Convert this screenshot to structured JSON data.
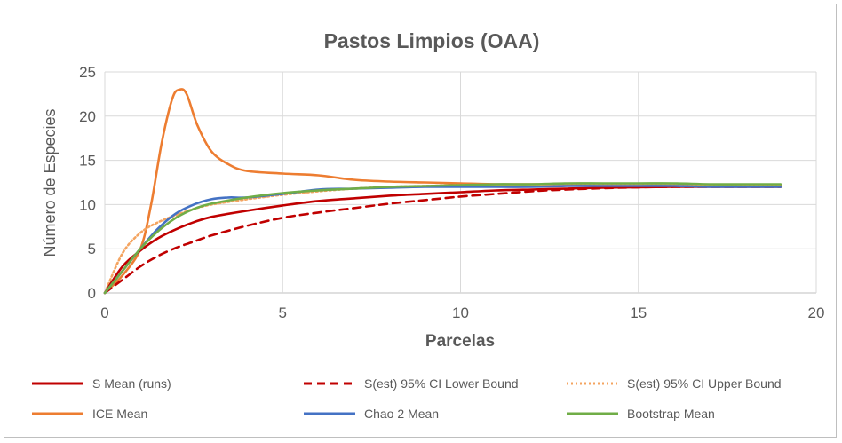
{
  "chart_data": {
    "type": "line",
    "title": "Pastos Limpios (OAA)",
    "xlabel": "Parcelas",
    "ylabel": "Número de Especies",
    "xlim": [
      0,
      20
    ],
    "ylim": [
      0,
      25
    ],
    "xticks": [
      "0",
      "5",
      "10",
      "15",
      "20"
    ],
    "yticks": [
      "0",
      "5",
      "10",
      "15",
      "20",
      "25"
    ],
    "grid": true,
    "legend": "bottom",
    "series": [
      {
        "name": "S Mean (runs)",
        "color": "#c00000",
        "dash": "solid",
        "points": [
          [
            0,
            0
          ],
          [
            0.5,
            3
          ],
          [
            1,
            4.8
          ],
          [
            1.5,
            6.2
          ],
          [
            2,
            7.2
          ],
          [
            2.5,
            8
          ],
          [
            3,
            8.6
          ],
          [
            4,
            9.3
          ],
          [
            5,
            9.9
          ],
          [
            6,
            10.4
          ],
          [
            7,
            10.7
          ],
          [
            8,
            11
          ],
          [
            9,
            11.2
          ],
          [
            10,
            11.4
          ],
          [
            11,
            11.6
          ],
          [
            12,
            11.7
          ],
          [
            13,
            11.8
          ],
          [
            14,
            11.9
          ],
          [
            15,
            11.95
          ],
          [
            16,
            12
          ],
          [
            17,
            12
          ],
          [
            18,
            12
          ],
          [
            19,
            12
          ]
        ]
      },
      {
        "name": "S(est) 95% CI Lower Bound",
        "color": "#c00000",
        "dash": "dashed",
        "points": [
          [
            0,
            0
          ],
          [
            0.5,
            1.5
          ],
          [
            1,
            3
          ],
          [
            1.5,
            4.2
          ],
          [
            2,
            5.1
          ],
          [
            2.5,
            5.8
          ],
          [
            3,
            6.5
          ],
          [
            4,
            7.6
          ],
          [
            5,
            8.5
          ],
          [
            6,
            9.1
          ],
          [
            7,
            9.6
          ],
          [
            8,
            10.1
          ],
          [
            9,
            10.5
          ],
          [
            10,
            10.9
          ],
          [
            11,
            11.2
          ],
          [
            12,
            11.5
          ],
          [
            13,
            11.7
          ],
          [
            14,
            11.85
          ],
          [
            15,
            11.95
          ],
          [
            16,
            12
          ],
          [
            17,
            12
          ],
          [
            18,
            12
          ],
          [
            19,
            12
          ]
        ]
      },
      {
        "name": "S(est) 95% CI Upper Bound",
        "color": "#f4a460",
        "dash": "dotted",
        "points": [
          [
            0,
            0
          ],
          [
            0.5,
            4.5
          ],
          [
            1,
            6.8
          ],
          [
            1.5,
            8
          ],
          [
            2,
            8.8
          ],
          [
            2.5,
            9.5
          ],
          [
            3,
            10
          ],
          [
            4,
            10.6
          ],
          [
            5,
            11.1
          ],
          [
            6,
            11.5
          ],
          [
            7,
            11.8
          ],
          [
            8,
            12
          ],
          [
            9,
            12.1
          ],
          [
            10,
            12.2
          ],
          [
            11,
            12.2
          ],
          [
            12,
            12.2
          ],
          [
            13,
            12.2
          ],
          [
            14,
            12.2
          ],
          [
            15,
            12.2
          ],
          [
            16,
            12.2
          ],
          [
            17,
            12.1
          ],
          [
            18,
            12.1
          ],
          [
            19,
            12.1
          ]
        ]
      },
      {
        "name": "ICE Mean",
        "color": "#ed7d31",
        "dash": "solid",
        "points": [
          [
            0,
            0
          ],
          [
            0.5,
            2
          ],
          [
            1,
            5
          ],
          [
            1.3,
            10
          ],
          [
            1.6,
            17
          ],
          [
            1.9,
            22
          ],
          [
            2.1,
            23
          ],
          [
            2.3,
            22.5
          ],
          [
            2.6,
            19
          ],
          [
            3,
            16
          ],
          [
            3.5,
            14.5
          ],
          [
            4,
            13.8
          ],
          [
            5,
            13.5
          ],
          [
            6,
            13.3
          ],
          [
            7,
            12.8
          ],
          [
            8,
            12.6
          ],
          [
            9,
            12.5
          ],
          [
            10,
            12.4
          ],
          [
            11,
            12.3
          ],
          [
            12,
            12.3
          ],
          [
            13,
            12.3
          ],
          [
            14,
            12.3
          ],
          [
            15,
            12.3
          ],
          [
            16,
            12.2
          ],
          [
            17,
            12.2
          ],
          [
            18,
            12.2
          ],
          [
            19,
            12.2
          ]
        ]
      },
      {
        "name": "Chao 2 Mean",
        "color": "#4472c4",
        "dash": "solid",
        "points": [
          [
            0,
            0
          ],
          [
            0.5,
            2.5
          ],
          [
            1,
            5
          ],
          [
            1.5,
            7.3
          ],
          [
            2,
            9
          ],
          [
            2.5,
            10
          ],
          [
            3,
            10.6
          ],
          [
            3.5,
            10.8
          ],
          [
            4,
            10.8
          ],
          [
            5,
            11.2
          ],
          [
            6,
            11.7
          ],
          [
            7,
            11.8
          ],
          [
            8,
            11.9
          ],
          [
            9,
            12
          ],
          [
            10,
            12
          ],
          [
            11,
            12
          ],
          [
            12,
            12
          ],
          [
            13,
            12.1
          ],
          [
            14,
            12.1
          ],
          [
            15,
            12.1
          ],
          [
            16,
            12.1
          ],
          [
            17,
            12
          ],
          [
            18,
            12
          ],
          [
            19,
            12
          ]
        ]
      },
      {
        "name": "Bootstrap Mean",
        "color": "#70ad47",
        "dash": "solid",
        "points": [
          [
            0,
            0
          ],
          [
            0.5,
            2.5
          ],
          [
            1,
            5
          ],
          [
            1.5,
            7
          ],
          [
            2,
            8.5
          ],
          [
            2.5,
            9.5
          ],
          [
            3,
            10.1
          ],
          [
            4,
            10.8
          ],
          [
            5,
            11.3
          ],
          [
            6,
            11.6
          ],
          [
            7,
            11.8
          ],
          [
            8,
            12
          ],
          [
            9,
            12.1
          ],
          [
            10,
            12.2
          ],
          [
            11,
            12.3
          ],
          [
            12,
            12.3
          ],
          [
            13,
            12.4
          ],
          [
            14,
            12.4
          ],
          [
            15,
            12.4
          ],
          [
            16,
            12.4
          ],
          [
            17,
            12.3
          ],
          [
            18,
            12.3
          ],
          [
            19,
            12.3
          ]
        ]
      }
    ]
  }
}
